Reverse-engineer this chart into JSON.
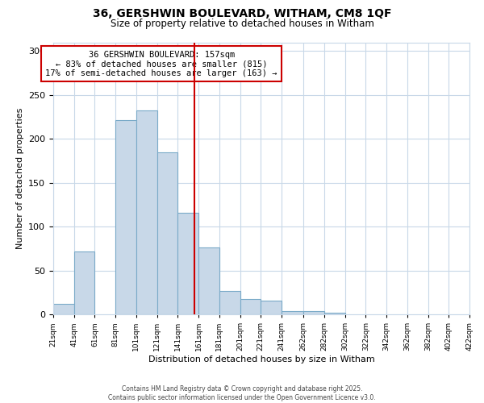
{
  "title": "36, GERSHWIN BOULEVARD, WITHAM, CM8 1QF",
  "subtitle": "Size of property relative to detached houses in Witham",
  "xlabel": "Distribution of detached houses by size in Witham",
  "ylabel": "Number of detached properties",
  "bar_color": "#c8d8e8",
  "bar_edge_color": "#7aaac8",
  "background_color": "#ffffff",
  "grid_color": "#c8d8e8",
  "vline_x": 157,
  "vline_color": "#cc0000",
  "annotation_title": "36 GERSHWIN BOULEVARD: 157sqm",
  "annotation_line1": "← 83% of detached houses are smaller (815)",
  "annotation_line2": "17% of semi-detached houses are larger (163) →",
  "annotation_box_color": "#ffffff",
  "annotation_box_edge": "#cc0000",
  "bin_edges": [
    21,
    41,
    61,
    81,
    101,
    121,
    141,
    161,
    181,
    201,
    221,
    241,
    262,
    282,
    302,
    322,
    342,
    362,
    382,
    402,
    422
  ],
  "bin_values": [
    12,
    72,
    0,
    221,
    232,
    185,
    116,
    76,
    27,
    17,
    16,
    4,
    4,
    2,
    0,
    0,
    0,
    0,
    0,
    0
  ],
  "xlim_min": 21,
  "xlim_max": 422,
  "ylim_min": 0,
  "ylim_max": 310,
  "yticks": [
    0,
    50,
    100,
    150,
    200,
    250,
    300
  ],
  "xtick_labels": [
    "21sqm",
    "41sqm",
    "61sqm",
    "81sqm",
    "101sqm",
    "121sqm",
    "141sqm",
    "161sqm",
    "181sqm",
    "201sqm",
    "221sqm",
    "241sqm",
    "262sqm",
    "282sqm",
    "302sqm",
    "322sqm",
    "342sqm",
    "362sqm",
    "382sqm",
    "402sqm",
    "422sqm"
  ],
  "footer_line1": "Contains HM Land Registry data © Crown copyright and database right 2025.",
  "footer_line2": "Contains public sector information licensed under the Open Government Licence v3.0."
}
